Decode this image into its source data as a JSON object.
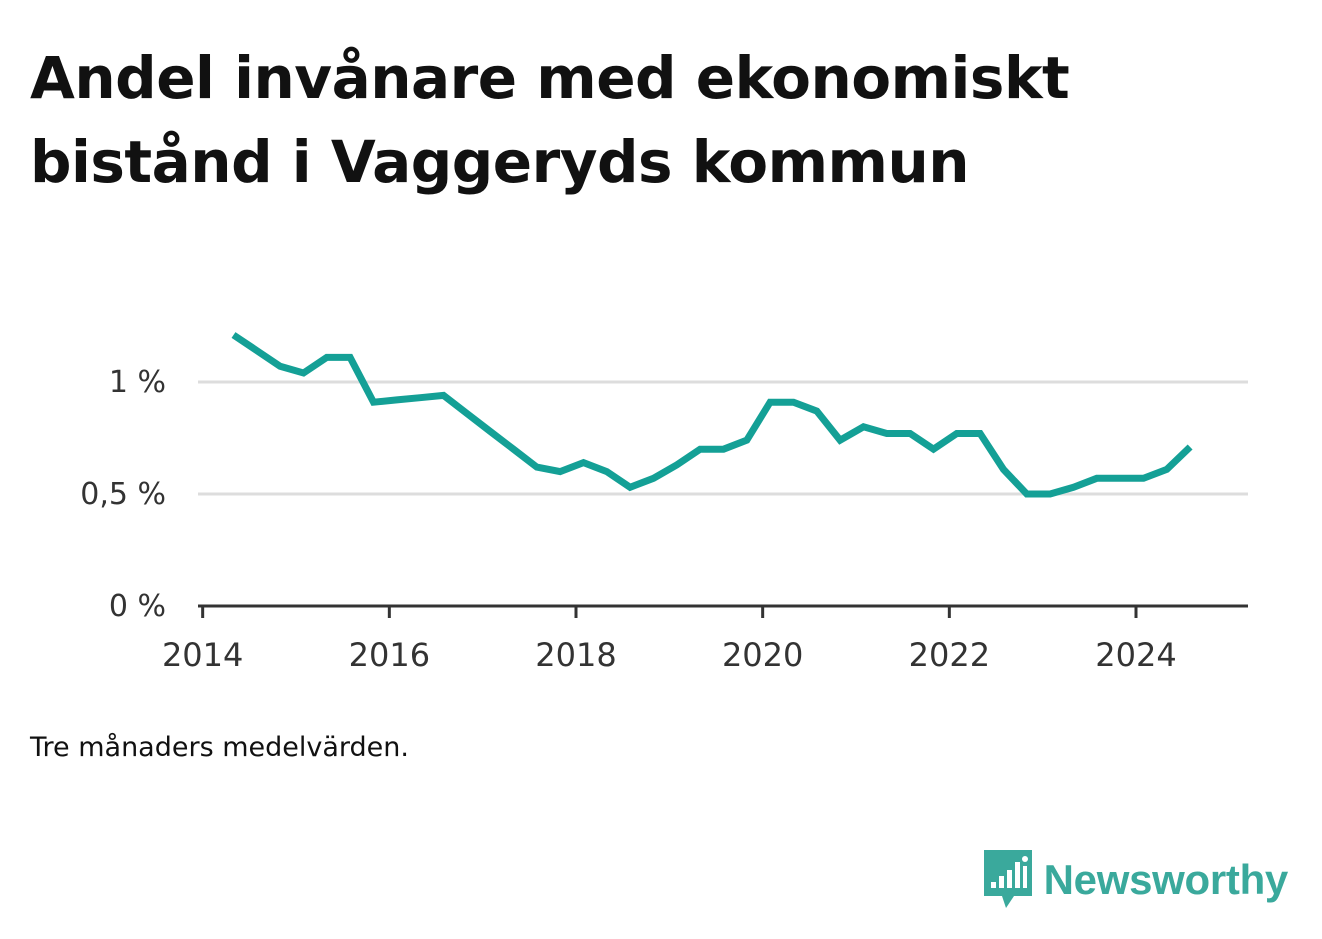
{
  "title": "Andel invånare med ekonomiskt bistånd i Vaggeryds kommun",
  "note": "Tre månaders medelvärden.",
  "brand": {
    "name": "Newsworthy",
    "icon": "newsworthy-logo-icon",
    "color": "#3aa99c"
  },
  "colors": {
    "line": "#14a096",
    "grid": "#dddddd",
    "axis": "#333333",
    "tick_text": "#333333"
  },
  "chart_data": {
    "type": "line",
    "title": "Andel invånare med ekonomiskt bistånd i Vaggeryds kommun",
    "xlabel": "",
    "ylabel": "",
    "xlim": [
      2013.95,
      2025.2
    ],
    "ylim": [
      0,
      1.0
    ],
    "grid": true,
    "x_ticks": [
      2014,
      2016,
      2018,
      2020,
      2022,
      2024
    ],
    "x_tick_labels": [
      "2014",
      "2016",
      "2018",
      "2020",
      "2022",
      "2024"
    ],
    "y_ticks": [
      0,
      0.5,
      1.0
    ],
    "y_tick_labels": [
      "0 %",
      "0,5 %",
      "1 %"
    ],
    "series": [
      {
        "name": "Andel invånare med ekonomiskt bistånd",
        "x": [
          2014.33,
          2014.58,
          2014.83,
          2015.08,
          2015.33,
          2015.58,
          2015.83,
          2016.08,
          2016.33,
          2016.58,
          2016.83,
          2017.08,
          2017.33,
          2017.58,
          2017.83,
          2018.08,
          2018.33,
          2018.58,
          2018.83,
          2019.08,
          2019.33,
          2019.58,
          2019.83,
          2020.08,
          2020.33,
          2020.58,
          2020.83,
          2021.08,
          2021.33,
          2021.58,
          2021.83,
          2022.08,
          2022.33,
          2022.58,
          2022.83,
          2023.08,
          2023.33,
          2023.58,
          2023.83,
          2024.08,
          2024.33,
          2024.58
        ],
        "values": [
          1.21,
          1.14,
          1.07,
          1.04,
          1.11,
          1.11,
          0.91,
          0.92,
          0.93,
          0.94,
          0.86,
          0.78,
          0.7,
          0.62,
          0.6,
          0.64,
          0.6,
          0.53,
          0.57,
          0.63,
          0.7,
          0.7,
          0.74,
          0.91,
          0.91,
          0.87,
          0.74,
          0.8,
          0.77,
          0.77,
          0.7,
          0.77,
          0.77,
          0.61,
          0.5,
          0.5,
          0.53,
          0.57,
          0.57,
          0.57,
          0.61,
          0.71
        ]
      }
    ]
  }
}
